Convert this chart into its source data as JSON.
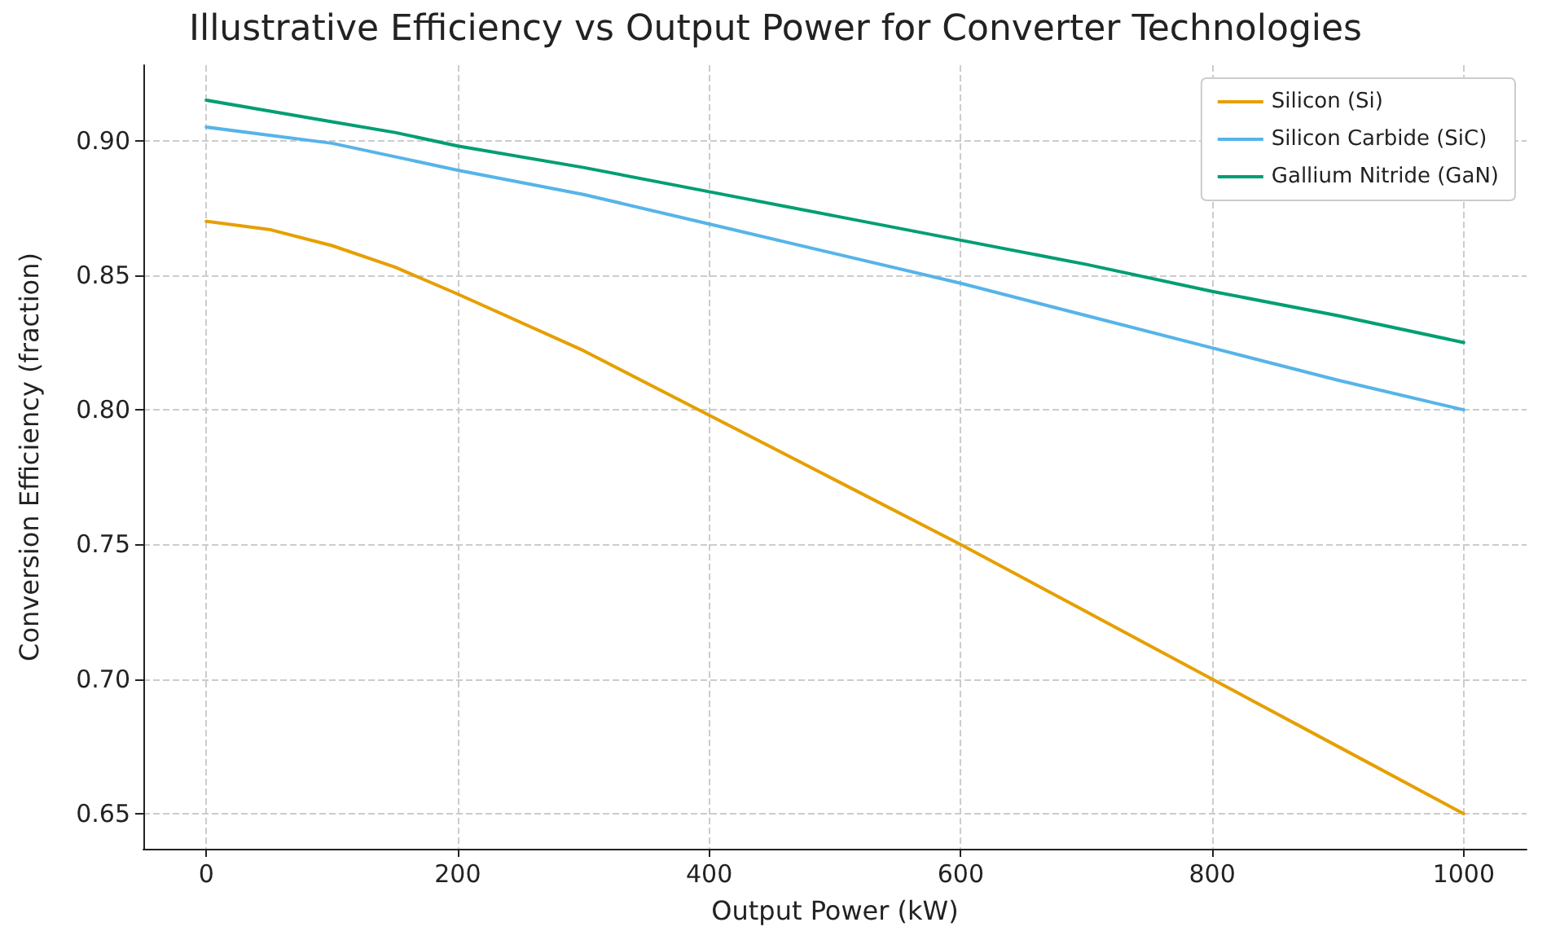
{
  "chart_data": {
    "type": "line",
    "title": "Illustrative Efficiency vs Output Power for Converter Technologies",
    "xlabel": "Output Power (kW)",
    "ylabel": "Conversion Efficiency (fraction)",
    "x": [
      0,
      50,
      100,
      150,
      200,
      300,
      400,
      500,
      600,
      700,
      800,
      900,
      1000
    ],
    "series": [
      {
        "name": "Silicon (Si)",
        "color": "#e69f00",
        "values": [
          0.87,
          0.867,
          0.861,
          0.853,
          0.843,
          0.822,
          0.798,
          0.774,
          0.75,
          0.725,
          0.7,
          0.675,
          0.65
        ]
      },
      {
        "name": "Silicon Carbide (SiC)",
        "color": "#56b4e9",
        "values": [
          0.905,
          0.902,
          0.899,
          0.894,
          0.889,
          0.88,
          0.869,
          0.858,
          0.847,
          0.835,
          0.823,
          0.811,
          0.8
        ]
      },
      {
        "name": "Gallium Nitride (GaN)",
        "color": "#009e73",
        "values": [
          0.915,
          0.911,
          0.907,
          0.903,
          0.898,
          0.89,
          0.881,
          0.872,
          0.863,
          0.854,
          0.844,
          0.835,
          0.825
        ]
      }
    ],
    "xlim": [
      -50,
      1050
    ],
    "xticks": [
      0,
      200,
      400,
      600,
      800,
      1000
    ],
    "ylim": [
      0.637,
      0.928
    ],
    "yticks": [
      0.65,
      {
        "value": 0.7,
        "label": "0.70"
      },
      0.75,
      {
        "value": 0.8,
        "label": "0.80"
      },
      0.85,
      {
        "value": 0.9,
        "label": "0.90"
      }
    ],
    "grid": true,
    "legend": "top right",
    "marker": "none",
    "line_style": "solid"
  }
}
